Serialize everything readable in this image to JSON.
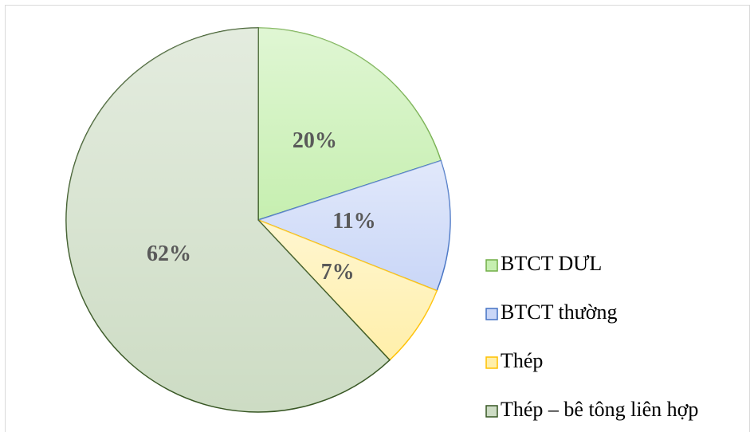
{
  "chart_data": {
    "type": "pie",
    "categories": [
      "BTCT DƯL",
      "BTCT thường",
      "Thép",
      "Thép – bê tông liên hợp"
    ],
    "values": [
      20,
      11,
      7,
      62
    ],
    "value_labels": [
      "20%",
      "11%",
      "7%",
      "62%"
    ],
    "colors": [
      "#c6efb0",
      "#c9d6f7",
      "#ffefaa",
      "#cddcc4"
    ],
    "legend": "right"
  }
}
